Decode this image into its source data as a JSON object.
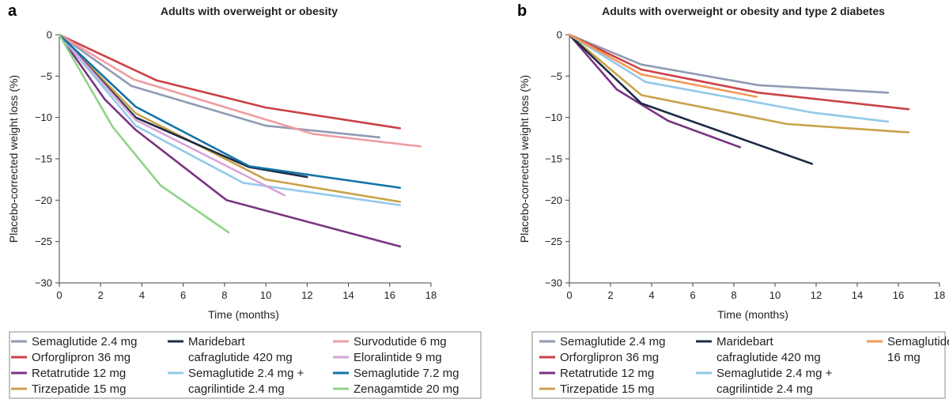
{
  "chart_data": [
    {
      "type": "line",
      "panel_label": "a",
      "title": "Adults with overweight or obesity",
      "xlabel": "Time (months)",
      "ylabel": "Placebo-corrected weight loss (%)",
      "xlim": [
        0,
        18
      ],
      "ylim": [
        -30,
        0
      ],
      "xticks": [
        "0",
        "2",
        "4",
        "6",
        "8",
        "10",
        "12",
        "14",
        "16",
        "18"
      ],
      "yticks": [
        "0",
        "−5",
        "−10",
        "−15",
        "−20",
        "−25",
        "−30"
      ],
      "grid": false,
      "legend_placement": "bottom",
      "series": [
        {
          "name": "Semaglutide 2.4 mg",
          "color": "#8f9ab3",
          "x": [
            0,
            3.5,
            10,
            15.5
          ],
          "y": [
            0,
            -6.2,
            -11,
            -12.4
          ]
        },
        {
          "name": "Orforglipron 36 mg",
          "color": "#cc4146",
          "x": [
            0,
            4.7,
            10,
            16.5
          ],
          "y": [
            0,
            -5.5,
            -8.8,
            -11.3
          ]
        },
        {
          "name": "Retatrutide 12 mg",
          "color": "#7a3382",
          "x": [
            0,
            2.2,
            3.7,
            8.1,
            16.5
          ],
          "y": [
            0,
            -7.8,
            -11.5,
            -20,
            -25.6
          ]
        },
        {
          "name": "Tirzepatide 15 mg",
          "color": "#c9a24a",
          "x": [
            0,
            3.7,
            10,
            16.5
          ],
          "y": [
            0,
            -9.5,
            -17.5,
            -20.2
          ]
        },
        {
          "name": "Maridebart cafraglutide 420 mg",
          "color": "#1d2b45",
          "x": [
            0,
            3.7,
            9.2,
            12
          ],
          "y": [
            0,
            -10,
            -16,
            -17.2
          ]
        },
        {
          "name": "Semaglutide 2.4 mg + cagrilintide 2.4 mg",
          "color": "#93c9ea",
          "x": [
            0,
            3.7,
            8.9,
            16.5
          ],
          "y": [
            0,
            -11,
            -17.9,
            -20.6
          ]
        },
        {
          "name": "Survodutide 6 mg",
          "color": "#ee9ea0",
          "x": [
            0,
            3.6,
            12.3,
            17.5
          ],
          "y": [
            0,
            -5.4,
            -12,
            -13.5
          ]
        },
        {
          "name": "Eloralintide 9 mg",
          "color": "#d7a4d7",
          "x": [
            0,
            3.7,
            10.9
          ],
          "y": [
            0,
            -10.3,
            -19.4
          ]
        },
        {
          "name": "Semaglutide 7.2 mg",
          "color": "#1372a8",
          "x": [
            0,
            3.7,
            9.2,
            16.5
          ],
          "y": [
            0,
            -8.7,
            -15.9,
            -18.5
          ]
        },
        {
          "name": "Zenagamtide 20 mg",
          "color": "#8fd487",
          "x": [
            0,
            2.6,
            4.9,
            8.2
          ],
          "y": [
            0,
            -11.2,
            -18.2,
            -23.9
          ]
        }
      ]
    },
    {
      "type": "line",
      "panel_label": "b",
      "title": "Adults with overweight or obesity and type 2 diabetes",
      "xlabel": "Time (months)",
      "ylabel": "Placebo-corrected weight loss (%)",
      "xlim": [
        0,
        18
      ],
      "ylim": [
        -30,
        0
      ],
      "xticks": [
        "0",
        "2",
        "4",
        "6",
        "8",
        "10",
        "12",
        "14",
        "16",
        "18"
      ],
      "yticks": [
        "0",
        "−5",
        "−10",
        "−15",
        "−20",
        "−25",
        "−30"
      ],
      "grid": false,
      "legend_placement": "bottom",
      "series": [
        {
          "name": "Semaglutide 2.4 mg",
          "color": "#8f9ab3",
          "x": [
            0,
            3.5,
            9.2,
            15.5
          ],
          "y": [
            0,
            -3.6,
            -6.1,
            -7
          ]
        },
        {
          "name": "Orforglipron 36 mg",
          "color": "#cc4146",
          "x": [
            0,
            3.5,
            9.2,
            16.5
          ],
          "y": [
            0,
            -4.2,
            -7,
            -9
          ]
        },
        {
          "name": "Retatrutide 12 mg",
          "color": "#7a3382",
          "x": [
            0,
            2.3,
            4.8,
            8.3
          ],
          "y": [
            0,
            -6.6,
            -10.4,
            -13.6
          ]
        },
        {
          "name": "Tirzepatide 15 mg",
          "color": "#c9a24a",
          "x": [
            0,
            3.5,
            10.6,
            16.5
          ],
          "y": [
            0,
            -7.3,
            -10.8,
            -11.8
          ]
        },
        {
          "name": "Maridebart cafraglutide 420 mg",
          "color": "#1d2b45",
          "x": [
            0,
            3.5,
            11.8
          ],
          "y": [
            0,
            -8.3,
            -15.6
          ]
        },
        {
          "name": "Semaglutide 2.4 mg + cagrilintide 2.4 mg",
          "color": "#93c9ea",
          "x": [
            0,
            3.7,
            11.8,
            15.5
          ],
          "y": [
            0,
            -5.7,
            -9.4,
            -10.5
          ]
        },
        {
          "name": "Semaglutide 16 mg",
          "color": "#f39a57",
          "x": [
            0,
            3.5,
            9.1
          ],
          "y": [
            0,
            -4.8,
            -7.5
          ]
        }
      ]
    }
  ],
  "legend_a": {
    "columns": [
      [
        {
          "label_lines": [
            "Semaglutide 2.4 mg"
          ],
          "color": "#8f9ab3"
        },
        {
          "label_lines": [
            "Orforglipron 36 mg"
          ],
          "color": "#cc4146"
        },
        {
          "label_lines": [
            "Retatrutide 12 mg"
          ],
          "color": "#7a3382"
        },
        {
          "label_lines": [
            "Tirzepatide 15 mg"
          ],
          "color": "#c9a24a"
        }
      ],
      [
        {
          "label_lines": [
            "Maridebart",
            "cafraglutide 420 mg"
          ],
          "color": "#1d2b45"
        },
        {
          "label_lines": [
            "Semaglutide 2.4 mg +",
            "cagrilintide 2.4 mg"
          ],
          "color": "#93c9ea"
        }
      ],
      [
        {
          "label_lines": [
            "Survodutide 6 mg"
          ],
          "color": "#ee9ea0"
        },
        {
          "label_lines": [
            "Eloralintide 9 mg"
          ],
          "color": "#d7a4d7"
        },
        {
          "label_lines": [
            "Semaglutide 7.2 mg"
          ],
          "color": "#1372a8"
        },
        {
          "label_lines": [
            "Zenagamtide 20 mg"
          ],
          "color": "#8fd487"
        }
      ]
    ]
  },
  "legend_b": {
    "columns": [
      [
        {
          "label_lines": [
            "Semaglutide 2.4 mg"
          ],
          "color": "#8f9ab3"
        },
        {
          "label_lines": [
            "Orforglipron 36 mg"
          ],
          "color": "#cc4146"
        },
        {
          "label_lines": [
            "Retatrutide 12 mg"
          ],
          "color": "#7a3382"
        },
        {
          "label_lines": [
            "Tirzepatide 15 mg"
          ],
          "color": "#c9a24a"
        }
      ],
      [
        {
          "label_lines": [
            "Maridebart",
            "cafraglutide 420 mg"
          ],
          "color": "#1d2b45"
        },
        {
          "label_lines": [
            "Semaglutide 2.4 mg +",
            "cagrilintide 2.4 mg"
          ],
          "color": "#93c9ea"
        }
      ],
      [
        {
          "label_lines": [
            "Semaglutide",
            "16 mg"
          ],
          "color": "#f39a57"
        }
      ]
    ]
  }
}
